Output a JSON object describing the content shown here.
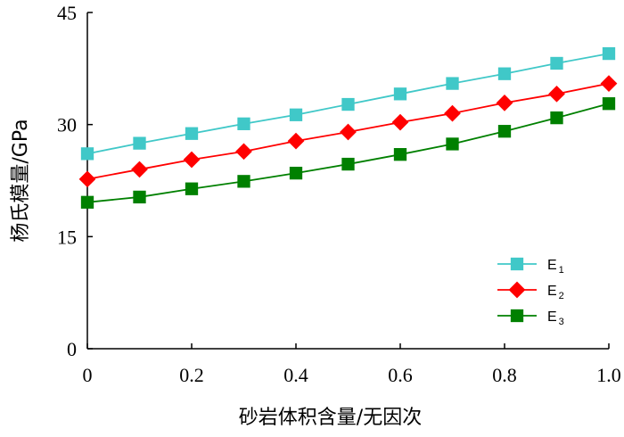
{
  "chart_data": {
    "type": "line",
    "xlabel": "砂岩体积含量/无因次",
    "ylabel": "杨氏模量/GPa",
    "xlim": [
      0,
      1.0
    ],
    "ylim": [
      0,
      45
    ],
    "x_ticks": [
      "0",
      "0.2",
      "0.4",
      "0.6",
      "0.8",
      "1.0"
    ],
    "x_tick_values": [
      0,
      0.2,
      0.4,
      0.6,
      0.8,
      1.0
    ],
    "y_ticks": [
      "0",
      "15",
      "30",
      "45"
    ],
    "y_tick_values": [
      0,
      15,
      30,
      45
    ],
    "legend_position": "right",
    "grid": false,
    "x": [
      0,
      0.1,
      0.2,
      0.3,
      0.4,
      0.5,
      0.6,
      0.7,
      0.8,
      0.9,
      1.0
    ],
    "series": [
      {
        "name": "E",
        "subscript": "1",
        "color": "#40c8c8",
        "marker": "square",
        "values": [
          26.1,
          27.5,
          28.8,
          30.1,
          31.3,
          32.7,
          34.1,
          35.5,
          36.8,
          38.2,
          39.5
        ]
      },
      {
        "name": "E",
        "subscript": "2",
        "color": "#ff0000",
        "marker": "diamond",
        "values": [
          22.7,
          24.0,
          25.3,
          26.4,
          27.8,
          29.0,
          30.3,
          31.5,
          32.9,
          34.1,
          35.5
        ]
      },
      {
        "name": "E",
        "subscript": "3",
        "color": "#008000",
        "marker": "square",
        "values": [
          19.6,
          20.3,
          21.4,
          22.4,
          23.5,
          24.7,
          26.0,
          27.4,
          29.1,
          30.9,
          32.8
        ]
      }
    ]
  }
}
